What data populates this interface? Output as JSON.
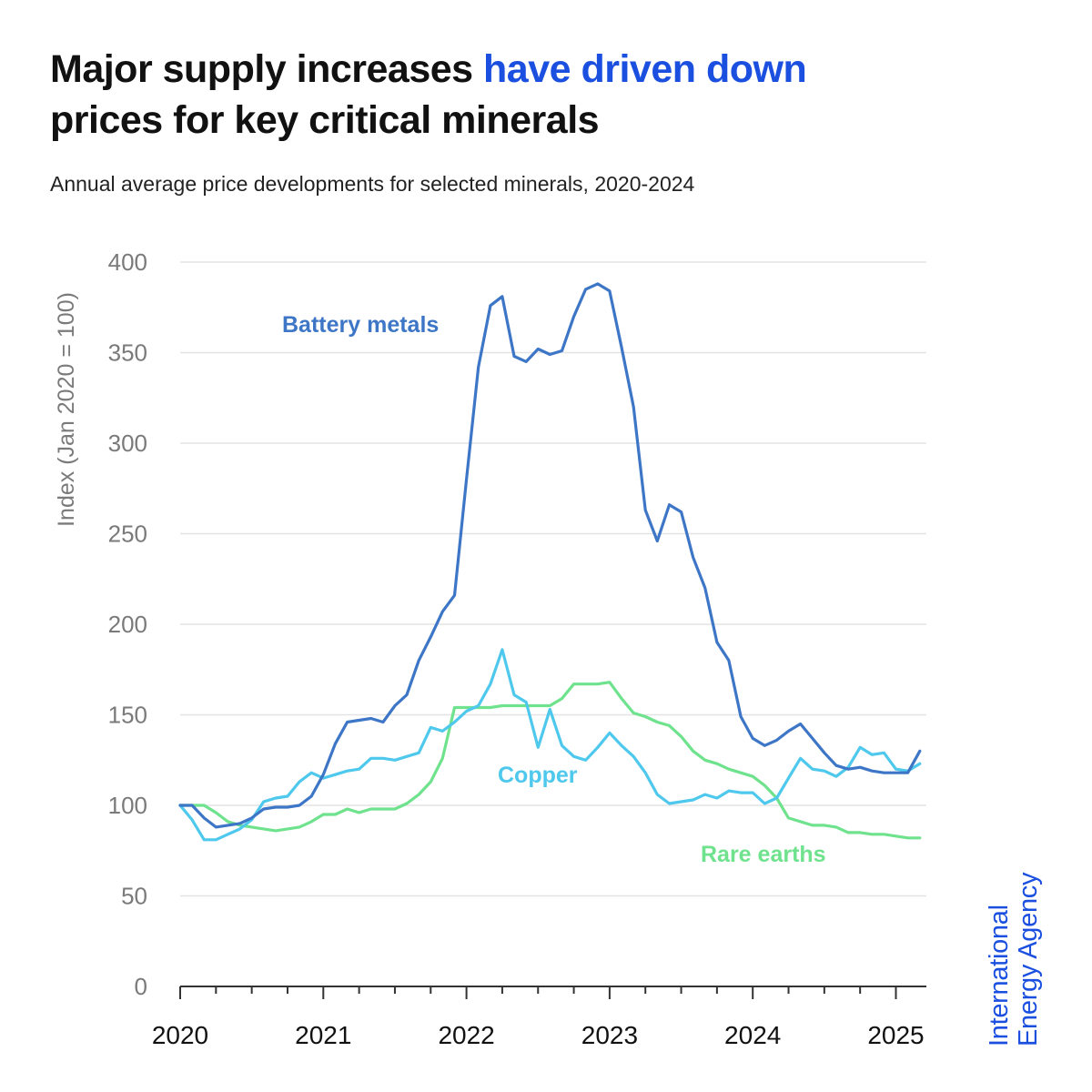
{
  "header": {
    "title_part1": "Major supply increases ",
    "title_highlight": "have driven down",
    "title_part2": "prices for key critical minerals",
    "subtitle": "Annual average price developments for selected minerals, 2020-2024"
  },
  "logo": {
    "line1": "International",
    "line2": "Energy Agency"
  },
  "colors": {
    "battery": "#3d76c6",
    "copper": "#4ec8ec",
    "rare_earths": "#6ee28c",
    "grid": "#e3e3e3",
    "axis": "#333333",
    "highlight": "#1a4fe0"
  },
  "chart_data": {
    "type": "line",
    "ylabel": "Index (Jan 2020 = 100)",
    "xlabel": "",
    "ylim": [
      0,
      400
    ],
    "yticks": [
      0,
      50,
      100,
      150,
      200,
      250,
      300,
      350,
      400
    ],
    "xlim": [
      2020.0,
      2025.25
    ],
    "xticks": [
      "2020",
      "2021",
      "2022",
      "2023",
      "2024",
      "2025"
    ],
    "grid": "horizontal",
    "series": [
      {
        "name": "Battery metals",
        "color": "#3d76c6",
        "x": [
          2020.0,
          2020.083,
          2020.167,
          2020.25,
          2020.333,
          2020.417,
          2020.5,
          2020.583,
          2020.667,
          2020.75,
          2020.833,
          2020.917,
          2021.0,
          2021.083,
          2021.167,
          2021.25,
          2021.333,
          2021.417,
          2021.5,
          2021.583,
          2021.667,
          2021.75,
          2021.833,
          2021.917,
          2022.0,
          2022.083,
          2022.167,
          2022.25,
          2022.333,
          2022.417,
          2022.5,
          2022.583,
          2022.667,
          2022.75,
          2022.833,
          2022.917,
          2023.0,
          2023.083,
          2023.167,
          2023.25,
          2023.333,
          2023.417,
          2023.5,
          2023.583,
          2023.667,
          2023.75,
          2023.833,
          2023.917,
          2024.0,
          2024.083,
          2024.167,
          2024.25,
          2024.333,
          2024.417,
          2024.5,
          2024.583,
          2024.667,
          2024.75,
          2024.833,
          2024.917,
          2025.0,
          2025.083,
          2025.167
        ],
        "values": [
          100,
          100,
          93,
          88,
          89,
          90,
          93,
          98,
          99,
          99,
          100,
          105,
          117,
          134,
          146,
          147,
          148,
          146,
          155,
          161,
          180,
          193,
          207,
          216,
          280,
          342,
          376,
          381,
          348,
          345,
          352,
          349,
          351,
          370,
          385,
          388,
          384,
          353,
          320,
          263,
          246,
          266,
          262,
          237,
          220,
          190,
          180,
          149,
          137,
          133,
          136,
          141,
          145,
          137,
          129,
          122,
          120,
          121,
          119,
          118,
          118,
          118,
          130
        ]
      },
      {
        "name": "Copper",
        "color": "#4ec8ec",
        "x": [
          2020.0,
          2020.083,
          2020.167,
          2020.25,
          2020.333,
          2020.417,
          2020.5,
          2020.583,
          2020.667,
          2020.75,
          2020.833,
          2020.917,
          2021.0,
          2021.083,
          2021.167,
          2021.25,
          2021.333,
          2021.417,
          2021.5,
          2021.583,
          2021.667,
          2021.75,
          2021.833,
          2021.917,
          2022.0,
          2022.083,
          2022.167,
          2022.25,
          2022.333,
          2022.417,
          2022.5,
          2022.583,
          2022.667,
          2022.75,
          2022.833,
          2022.917,
          2023.0,
          2023.083,
          2023.167,
          2023.25,
          2023.333,
          2023.417,
          2023.5,
          2023.583,
          2023.667,
          2023.75,
          2023.833,
          2023.917,
          2024.0,
          2024.083,
          2024.167,
          2024.25,
          2024.333,
          2024.417,
          2024.5,
          2024.583,
          2024.667,
          2024.75,
          2024.833,
          2024.917,
          2025.0,
          2025.083,
          2025.167
        ],
        "values": [
          100,
          92,
          81,
          81,
          84,
          87,
          92,
          102,
          104,
          105,
          113,
          118,
          115,
          117,
          119,
          120,
          126,
          126,
          125,
          127,
          129,
          143,
          141,
          146,
          152,
          155,
          167,
          186,
          161,
          157,
          132,
          153,
          133,
          127,
          125,
          132,
          140,
          133,
          127,
          118,
          106,
          101,
          102,
          103,
          106,
          104,
          108,
          107,
          107,
          101,
          104,
          115,
          126,
          120,
          119,
          116,
          121,
          132,
          128,
          129,
          120,
          119,
          123
        ]
      },
      {
        "name": "Rare earths",
        "color": "#6ee28c",
        "x": [
          2020.0,
          2020.083,
          2020.167,
          2020.25,
          2020.333,
          2020.417,
          2020.5,
          2020.583,
          2020.667,
          2020.75,
          2020.833,
          2020.917,
          2021.0,
          2021.083,
          2021.167,
          2021.25,
          2021.333,
          2021.417,
          2021.5,
          2021.583,
          2021.667,
          2021.75,
          2021.833,
          2021.917,
          2022.0,
          2022.083,
          2022.167,
          2022.25,
          2022.333,
          2022.417,
          2022.5,
          2022.583,
          2022.667,
          2022.75,
          2022.833,
          2022.917,
          2023.0,
          2023.083,
          2023.167,
          2023.25,
          2023.333,
          2023.417,
          2023.5,
          2023.583,
          2023.667,
          2023.75,
          2023.833,
          2023.917,
          2024.0,
          2024.083,
          2024.167,
          2024.25,
          2024.333,
          2024.417,
          2024.5,
          2024.583,
          2024.667,
          2024.75,
          2024.833,
          2024.917,
          2025.0,
          2025.083,
          2025.167
        ],
        "values": [
          100,
          100,
          100,
          96,
          91,
          89,
          88,
          87,
          86,
          87,
          88,
          91,
          95,
          95,
          98,
          96,
          98,
          98,
          98,
          101,
          106,
          113,
          126,
          154,
          154,
          154,
          154,
          155,
          155,
          155,
          155,
          155,
          159,
          167,
          167,
          167,
          168,
          159,
          151,
          149,
          146,
          144,
          138,
          130,
          125,
          123,
          120,
          118,
          116,
          111,
          104,
          93,
          91,
          89,
          89,
          88,
          85,
          85,
          84,
          84,
          83,
          82,
          82
        ]
      }
    ],
    "annotations": [
      {
        "text": "Battery metals",
        "series": "Battery metals"
      },
      {
        "text": "Copper",
        "series": "Copper"
      },
      {
        "text": "Rare earths",
        "series": "Rare earths"
      }
    ]
  }
}
